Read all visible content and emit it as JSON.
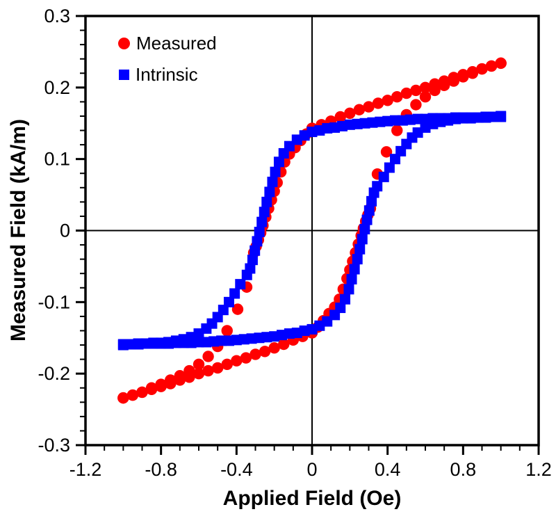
{
  "chart_data": {
    "type": "scatter",
    "title": "",
    "xlabel": "Applied Field (Oe)",
    "ylabel": "Measured Field (kA/m)",
    "xlim": [
      -1.2,
      1.2
    ],
    "ylim": [
      -0.3,
      0.3
    ],
    "xticks": [
      -1.2,
      -0.8,
      -0.4,
      0,
      0.4,
      0.8,
      1.2
    ],
    "xtick_labels": [
      "-1.2",
      "-0.8",
      "-0.4",
      "0",
      "0.4",
      "0.8",
      "1.2"
    ],
    "yticks": [
      0.3,
      0.2,
      0.1,
      0,
      -0.1,
      -0.2,
      -0.3
    ],
    "ytick_labels": [
      "0.3",
      "0.2",
      "0.1",
      "0",
      "-0.1",
      "-0.2",
      "-0.3"
    ],
    "x_minor_step": 0.1,
    "y_minor_step": 0.02,
    "grid": false,
    "zero_lines": true,
    "legend_position": "top-left",
    "axis_color": "#000000",
    "series": [
      {
        "name": "Measured",
        "marker": "circle",
        "color": "#ff0000",
        "points": [
          [
            1,
            0.234
          ],
          [
            0.95,
            0.23
          ],
          [
            0.9,
            0.226
          ],
          [
            0.85,
            0.222
          ],
          [
            0.8,
            0.218
          ],
          [
            0.75,
            0.214
          ],
          [
            0.7,
            0.209
          ],
          [
            0.65,
            0.205
          ],
          [
            0.6,
            0.2
          ],
          [
            0.55,
            0.196
          ],
          [
            0.5,
            0.192
          ],
          [
            0.45,
            0.187
          ],
          [
            0.4,
            0.182
          ],
          [
            0.35,
            0.178
          ],
          [
            0.3,
            0.173
          ],
          [
            0.25,
            0.169
          ],
          [
            0.2,
            0.164
          ],
          [
            0.15,
            0.159
          ],
          [
            0.1,
            0.153
          ],
          [
            0.05,
            0.148
          ],
          [
            0,
            0.143
          ],
          [
            -0.03,
            0.135
          ],
          [
            -0.06,
            0.126
          ],
          [
            -0.09,
            0.116
          ],
          [
            -0.12,
            0.107
          ],
          [
            -0.145,
            0.096
          ],
          [
            -0.165,
            0.082
          ],
          [
            -0.185,
            0.067
          ],
          [
            -0.2,
            0.055
          ],
          [
            -0.215,
            0.043
          ],
          [
            -0.23,
            0.031
          ],
          [
            -0.245,
            0.019
          ],
          [
            -0.26,
            0.007
          ],
          [
            -0.272,
            -0.003
          ],
          [
            -0.284,
            -0.013
          ],
          [
            -0.296,
            -0.022
          ],
          [
            -0.309,
            -0.031
          ],
          [
            -0.346,
            -0.079
          ],
          [
            -0.394,
            -0.11
          ],
          [
            -0.45,
            -0.14
          ],
          [
            -0.5,
            -0.162
          ],
          [
            -0.55,
            -0.176
          ],
          [
            -0.6,
            -0.187
          ],
          [
            -0.65,
            -0.196
          ],
          [
            -0.7,
            -0.203
          ],
          [
            -0.75,
            -0.209
          ],
          [
            -0.8,
            -0.215
          ],
          [
            -0.85,
            -0.22
          ],
          [
            -0.9,
            -0.226
          ],
          [
            -0.95,
            -0.23
          ],
          [
            -1,
            -0.234
          ],
          [
            -1,
            -0.234
          ],
          [
            -0.95,
            -0.23
          ],
          [
            -0.9,
            -0.226
          ],
          [
            -0.85,
            -0.222
          ],
          [
            -0.8,
            -0.218
          ],
          [
            -0.75,
            -0.214
          ],
          [
            -0.7,
            -0.209
          ],
          [
            -0.65,
            -0.205
          ],
          [
            -0.6,
            -0.2
          ],
          [
            -0.55,
            -0.196
          ],
          [
            -0.5,
            -0.192
          ],
          [
            -0.45,
            -0.187
          ],
          [
            -0.4,
            -0.182
          ],
          [
            -0.35,
            -0.178
          ],
          [
            -0.3,
            -0.173
          ],
          [
            -0.25,
            -0.169
          ],
          [
            -0.2,
            -0.164
          ],
          [
            -0.15,
            -0.159
          ],
          [
            -0.1,
            -0.153
          ],
          [
            -0.05,
            -0.148
          ],
          [
            0,
            -0.143
          ],
          [
            0.03,
            -0.135
          ],
          [
            0.06,
            -0.126
          ],
          [
            0.09,
            -0.116
          ],
          [
            0.12,
            -0.107
          ],
          [
            0.145,
            -0.096
          ],
          [
            0.165,
            -0.082
          ],
          [
            0.185,
            -0.067
          ],
          [
            0.2,
            -0.055
          ],
          [
            0.215,
            -0.043
          ],
          [
            0.23,
            -0.031
          ],
          [
            0.245,
            -0.019
          ],
          [
            0.26,
            -0.007
          ],
          [
            0.272,
            0.003
          ],
          [
            0.284,
            0.013
          ],
          [
            0.296,
            0.022
          ],
          [
            0.309,
            0.031
          ],
          [
            0.346,
            0.079
          ],
          [
            0.394,
            0.11
          ],
          [
            0.45,
            0.14
          ],
          [
            0.5,
            0.162
          ],
          [
            0.55,
            0.176
          ],
          [
            0.6,
            0.187
          ],
          [
            0.65,
            0.196
          ],
          [
            0.7,
            0.203
          ],
          [
            0.75,
            0.209
          ],
          [
            0.8,
            0.215
          ],
          [
            0.85,
            0.22
          ],
          [
            0.9,
            0.226
          ],
          [
            0.95,
            0.23
          ],
          [
            1,
            0.234
          ]
        ]
      },
      {
        "name": "Intrinsic",
        "marker": "square",
        "color": "#0000ff",
        "points": [
          [
            1,
            0.159
          ],
          [
            0.96,
            0.159
          ],
          [
            0.92,
            0.158
          ],
          [
            0.88,
            0.158
          ],
          [
            0.84,
            0.158
          ],
          [
            0.8,
            0.158
          ],
          [
            0.76,
            0.158
          ],
          [
            0.72,
            0.157
          ],
          [
            0.68,
            0.157
          ],
          [
            0.64,
            0.157
          ],
          [
            0.6,
            0.156
          ],
          [
            0.56,
            0.156
          ],
          [
            0.52,
            0.155
          ],
          [
            0.48,
            0.154
          ],
          [
            0.44,
            0.154
          ],
          [
            0.4,
            0.153
          ],
          [
            0.36,
            0.152
          ],
          [
            0.32,
            0.151
          ],
          [
            0.28,
            0.15
          ],
          [
            0.24,
            0.149
          ],
          [
            0.2,
            0.148
          ],
          [
            0.16,
            0.146
          ],
          [
            0.12,
            0.144
          ],
          [
            0.08,
            0.143
          ],
          [
            0.04,
            0.14
          ],
          [
            0,
            0.138
          ],
          [
            -0.04,
            0.133
          ],
          [
            -0.08,
            0.127
          ],
          [
            -0.12,
            0.118
          ],
          [
            -0.15,
            0.108
          ],
          [
            -0.175,
            0.096
          ],
          [
            -0.195,
            0.082
          ],
          [
            -0.21,
            0.068
          ],
          [
            -0.225,
            0.054
          ],
          [
            -0.24,
            0.04
          ],
          [
            -0.253,
            0.026
          ],
          [
            -0.266,
            0.012
          ],
          [
            -0.279,
            -0.002
          ],
          [
            -0.291,
            -0.015
          ],
          [
            -0.303,
            -0.028
          ],
          [
            -0.315,
            -0.041
          ],
          [
            -0.328,
            -0.053
          ],
          [
            -0.345,
            -0.062
          ],
          [
            -0.38,
            -0.075
          ],
          [
            -0.41,
            -0.088
          ],
          [
            -0.44,
            -0.1
          ],
          [
            -0.47,
            -0.111
          ],
          [
            -0.5,
            -0.121
          ],
          [
            -0.53,
            -0.13
          ],
          [
            -0.56,
            -0.137
          ],
          [
            -0.6,
            -0.144
          ],
          [
            -0.64,
            -0.149
          ],
          [
            -0.68,
            -0.152
          ],
          [
            -0.72,
            -0.154
          ],
          [
            -0.76,
            -0.156
          ],
          [
            -0.8,
            -0.157
          ],
          [
            -0.84,
            -0.157
          ],
          [
            -0.88,
            -0.158
          ],
          [
            -0.92,
            -0.159
          ],
          [
            -0.96,
            -0.159
          ],
          [
            -1,
            -0.16
          ],
          [
            -1,
            -0.159
          ],
          [
            -0.96,
            -0.159
          ],
          [
            -0.92,
            -0.158
          ],
          [
            -0.88,
            -0.158
          ],
          [
            -0.84,
            -0.158
          ],
          [
            -0.8,
            -0.158
          ],
          [
            -0.76,
            -0.158
          ],
          [
            -0.72,
            -0.157
          ],
          [
            -0.68,
            -0.157
          ],
          [
            -0.64,
            -0.157
          ],
          [
            -0.6,
            -0.156
          ],
          [
            -0.56,
            -0.156
          ],
          [
            -0.52,
            -0.155
          ],
          [
            -0.48,
            -0.154
          ],
          [
            -0.44,
            -0.154
          ],
          [
            -0.4,
            -0.153
          ],
          [
            -0.36,
            -0.152
          ],
          [
            -0.32,
            -0.151
          ],
          [
            -0.28,
            -0.15
          ],
          [
            -0.24,
            -0.149
          ],
          [
            -0.2,
            -0.148
          ],
          [
            -0.16,
            -0.146
          ],
          [
            -0.12,
            -0.144
          ],
          [
            -0.08,
            -0.143
          ],
          [
            -0.04,
            -0.14
          ],
          [
            0,
            -0.138
          ],
          [
            0.04,
            -0.133
          ],
          [
            0.08,
            -0.127
          ],
          [
            0.12,
            -0.118
          ],
          [
            0.15,
            -0.108
          ],
          [
            0.175,
            -0.096
          ],
          [
            0.195,
            -0.082
          ],
          [
            0.21,
            -0.068
          ],
          [
            0.225,
            -0.054
          ],
          [
            0.24,
            -0.04
          ],
          [
            0.253,
            -0.026
          ],
          [
            0.266,
            -0.012
          ],
          [
            0.279,
            0.002
          ],
          [
            0.291,
            0.015
          ],
          [
            0.303,
            0.028
          ],
          [
            0.315,
            0.041
          ],
          [
            0.328,
            0.053
          ],
          [
            0.345,
            0.062
          ],
          [
            0.38,
            0.075
          ],
          [
            0.41,
            0.088
          ],
          [
            0.44,
            0.1
          ],
          [
            0.47,
            0.111
          ],
          [
            0.5,
            0.121
          ],
          [
            0.53,
            0.13
          ],
          [
            0.56,
            0.137
          ],
          [
            0.6,
            0.144
          ],
          [
            0.64,
            0.149
          ],
          [
            0.68,
            0.152
          ],
          [
            0.72,
            0.154
          ],
          [
            0.76,
            0.156
          ],
          [
            0.8,
            0.157
          ],
          [
            0.84,
            0.157
          ],
          [
            0.88,
            0.158
          ],
          [
            0.92,
            0.159
          ],
          [
            0.96,
            0.159
          ],
          [
            1,
            0.16
          ]
        ]
      }
    ]
  }
}
